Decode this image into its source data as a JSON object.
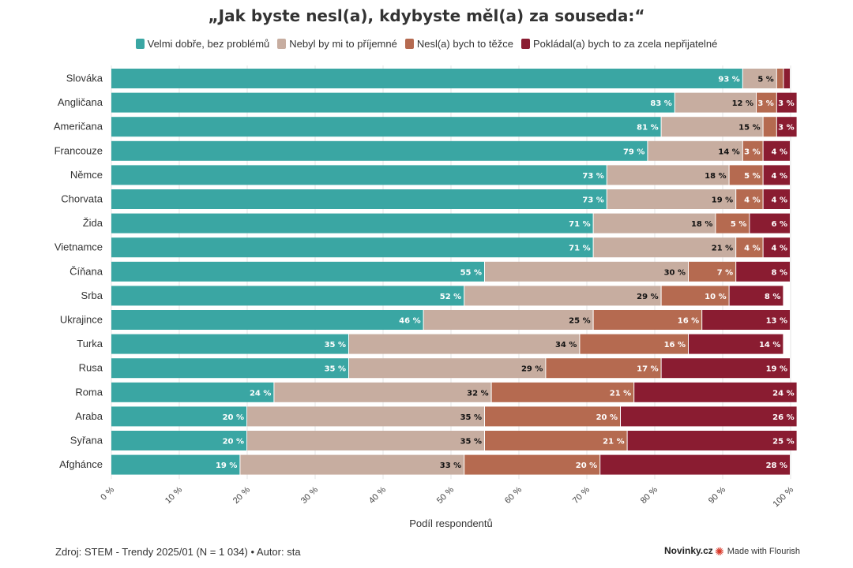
{
  "chart_data": {
    "type": "bar",
    "orientation": "horizontal",
    "stacked": true,
    "title": "„Jak byste nesl(a), kdybyste měl(a) za souseda:“",
    "xlabel": "Podíl respondentů",
    "ylabel": "",
    "xlim": [
      0,
      100
    ],
    "x_ticks": [
      "0 %",
      "10 %",
      "20 %",
      "30 %",
      "40 %",
      "50 %",
      "60 %",
      "70 %",
      "80 %",
      "90 %",
      "100 %"
    ],
    "legend_position": "top",
    "categories": [
      "Slováka",
      "Angličana",
      "Američana",
      "Francouze",
      "Němce",
      "Chorvata",
      "Žida",
      "Vietnamce",
      "Číňana",
      "Srba",
      "Ukrajince",
      "Turka",
      "Rusa",
      "Roma",
      "Araba",
      "Syřana",
      "Afghánce"
    ],
    "series": [
      {
        "name": "Velmi dobře, bez problémů",
        "color": "#3aa6a3",
        "label_color": "#ffffff",
        "values": [
          93,
          83,
          81,
          79,
          73,
          73,
          71,
          71,
          55,
          52,
          46,
          35,
          35,
          24,
          20,
          20,
          19
        ]
      },
      {
        "name": "Nebyl by mi to příjemné",
        "color": "#c7ada0",
        "label_color": "#111111",
        "values": [
          5,
          12,
          15,
          14,
          18,
          19,
          18,
          21,
          30,
          29,
          25,
          34,
          29,
          32,
          35,
          35,
          33
        ]
      },
      {
        "name": "Nesl(a) bych to těžce",
        "color": "#b56a50",
        "label_color": "#ffffff",
        "values": [
          1,
          3,
          2,
          3,
          5,
          4,
          5,
          4,
          7,
          10,
          16,
          16,
          17,
          21,
          20,
          21,
          20
        ]
      },
      {
        "name": "Pokládal(a) bych to za zcela nepřijatelné",
        "color": "#8a1c31",
        "label_color": "#ffffff",
        "values": [
          1,
          3,
          3,
          4,
          4,
          4,
          6,
          4,
          8,
          8,
          13,
          14,
          19,
          24,
          26,
          25,
          28
        ]
      }
    ],
    "data_labels": [
      [
        "93 %",
        "5 %",
        "",
        ""
      ],
      [
        "83 %",
        "12 %",
        "3 %",
        "3 %"
      ],
      [
        "81 %",
        "15 %",
        "",
        "3 %"
      ],
      [
        "79 %",
        "14 %",
        "3 %",
        "4 %"
      ],
      [
        "73 %",
        "18 %",
        "5 %",
        "4 %"
      ],
      [
        "73 %",
        "19 %",
        "4 %",
        "4 %"
      ],
      [
        "71 %",
        "18 %",
        "5 %",
        "6 %"
      ],
      [
        "71 %",
        "21 %",
        "4 %",
        "4 %"
      ],
      [
        "55 %",
        "30 %",
        "7 %",
        "8 %"
      ],
      [
        "52 %",
        "29 %",
        "10 %",
        "8 %"
      ],
      [
        "46 %",
        "25 %",
        "16 %",
        "13 %"
      ],
      [
        "35 %",
        "34 %",
        "16 %",
        "14 %"
      ],
      [
        "35 %",
        "29 %",
        "17 %",
        "19 %"
      ],
      [
        "24 %",
        "32 %",
        "21 %",
        "24 %"
      ],
      [
        "20 %",
        "35 %",
        "20 %",
        "26 %"
      ],
      [
        "20 %",
        "35 %",
        "21 %",
        "25 %"
      ],
      [
        "19 %",
        "33 %",
        "20 %",
        "28 %"
      ]
    ]
  },
  "footer": {
    "source": "Zdroj: STEM - Trendy 2025/01 (N = 1 034) • Autor: sta",
    "brand": "Novinky.cz",
    "made_with": "Made with Flourish",
    "flourish_icon": "flourish-star-icon"
  }
}
